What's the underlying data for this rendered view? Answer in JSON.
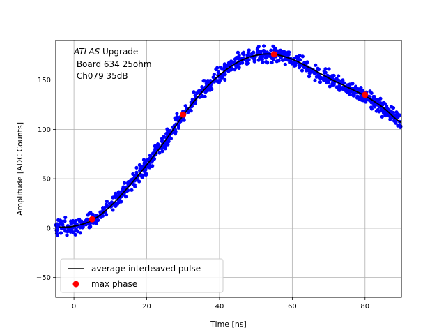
{
  "chart_data": {
    "type": "scatter",
    "xlabel": "Time [ns]",
    "ylabel": "Amplitude [ADC Counts]",
    "xlim": [
      -5,
      90
    ],
    "ylim": [
      -70,
      190
    ],
    "xticks": [
      0,
      20,
      40,
      60,
      80
    ],
    "yticks": [
      -50,
      0,
      50,
      100,
      150
    ],
    "grid": true,
    "annotation": {
      "italic": "ATLAS",
      "line1_rest": " Upgrade",
      "line2": " Board 634 25ohm",
      "line3": " Ch079 35dB"
    },
    "legend": {
      "placement": "lower-left",
      "entries": [
        {
          "label": "average interleaved pulse",
          "color": "#000000",
          "marker": "line"
        },
        {
          "label": "max phase",
          "color": "#ff0000",
          "marker": "dot"
        }
      ]
    },
    "pulse": {
      "color": "#000000",
      "x": [
        -4,
        0,
        5,
        10,
        15,
        20,
        25,
        30,
        35,
        40,
        45,
        50,
        55,
        60,
        65,
        70,
        75,
        80,
        85,
        90
      ],
      "y": [
        1,
        2,
        8,
        22,
        42,
        64,
        88,
        114,
        137,
        155,
        168,
        175,
        176,
        171,
        162,
        152,
        143,
        134,
        122,
        107
      ]
    },
    "scatter": {
      "color": "#0000ff",
      "noise_amplitude": 4,
      "x_range": [
        -5,
        90
      ],
      "count": 900
    },
    "max_phase": {
      "color": "#ff0000",
      "points": [
        {
          "x": 5,
          "y": 9
        },
        {
          "x": 30,
          "y": 115
        },
        {
          "x": 55,
          "y": 176
        },
        {
          "x": 80,
          "y": 135
        }
      ]
    }
  }
}
